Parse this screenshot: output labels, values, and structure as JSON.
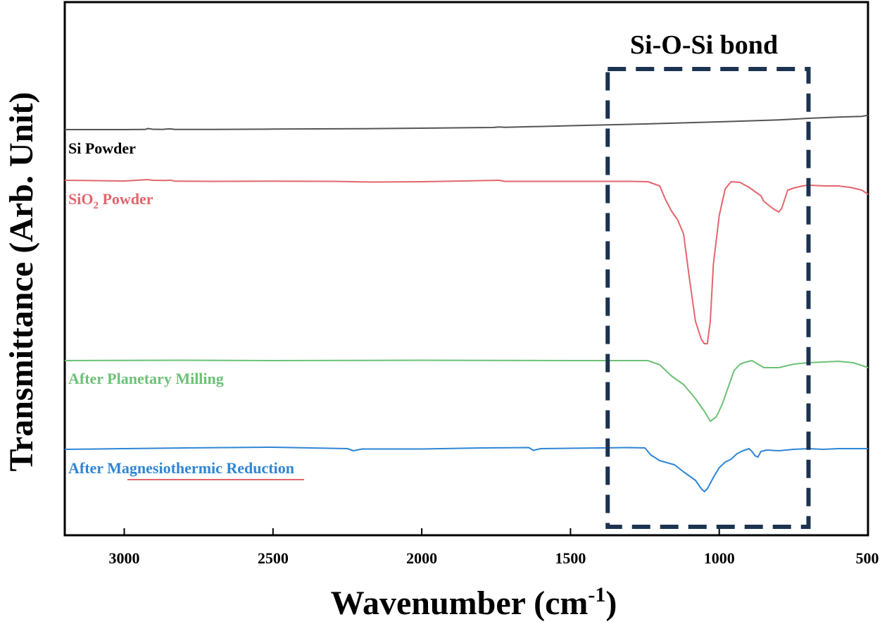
{
  "chart_data": {
    "type": "line",
    "xlabel": "Wavenumber (cm",
    "xlabel_sup": "-1",
    "xlabel_close": ")",
    "ylabel": "Transmittance (Arb. Unit)",
    "xlim": [
      3200,
      500
    ],
    "x_reversed": true,
    "xticks": [
      "3000",
      "2500",
      "2000",
      "1500",
      "1000",
      "500"
    ],
    "y_ticks_shown": false,
    "legend": "inline labels on left, left-aligned above each trace",
    "annotation": {
      "label": "Si-O-Si bond",
      "x_range": [
        1375,
        700
      ],
      "style": "dashed rectangle, dark navy"
    },
    "series": [
      {
        "name": "Si Powder",
        "name_parts": [
          "Si Powder"
        ],
        "color": "#555555",
        "points": [
          [
            3200,
            0.0
          ],
          [
            3000,
            0.0
          ],
          [
            2930,
            0.2
          ],
          [
            2920,
            1.5
          ],
          [
            2905,
            0.5
          ],
          [
            2870,
            0.3
          ],
          [
            2860,
            0.8
          ],
          [
            2845,
            1.0
          ],
          [
            2830,
            0.3
          ],
          [
            2700,
            0.3
          ],
          [
            2500,
            0.7
          ],
          [
            2200,
            1.3
          ],
          [
            2000,
            2.0
          ],
          [
            1760,
            3.0
          ],
          [
            1740,
            3.8
          ],
          [
            1720,
            3.2
          ],
          [
            1500,
            5.5
          ],
          [
            1250,
            8.0
          ],
          [
            1000,
            11.0
          ],
          [
            800,
            13.8
          ],
          [
            700,
            16.0
          ],
          [
            600,
            17.8
          ],
          [
            520,
            18.8
          ],
          [
            505,
            20.0
          ],
          [
            500,
            20.0
          ]
        ]
      },
      {
        "name": "SiO2 Powder",
        "name_parts": [
          "SiO",
          "2",
          " Powder"
        ],
        "color": "#e2666d",
        "points": [
          [
            3200,
            0.0
          ],
          [
            3000,
            -1.0
          ],
          [
            2920,
            1.0
          ],
          [
            2905,
            0.0
          ],
          [
            2860,
            -0.3
          ],
          [
            2845,
            0.3
          ],
          [
            2830,
            -1.2
          ],
          [
            2700,
            -1.5
          ],
          [
            2500,
            -1.2
          ],
          [
            2300,
            -1.5
          ],
          [
            2170,
            -2.5
          ],
          [
            2000,
            -2.0
          ],
          [
            1740,
            0.0
          ],
          [
            1720,
            -1.5
          ],
          [
            1500,
            -1.5
          ],
          [
            1300,
            -1.5
          ],
          [
            1240,
            -2.0
          ],
          [
            1200,
            -8.0
          ],
          [
            1180,
            -28.0
          ],
          [
            1160,
            -44.0
          ],
          [
            1140,
            -56.0
          ],
          [
            1120,
            -76.0
          ],
          [
            1100,
            -140.0
          ],
          [
            1080,
            -200.0
          ],
          [
            1060,
            -226.0
          ],
          [
            1050,
            -232.0
          ],
          [
            1040,
            -232.0
          ],
          [
            1030,
            -200.0
          ],
          [
            1020,
            -120.0
          ],
          [
            1000,
            -50.0
          ],
          [
            980,
            -12.0
          ],
          [
            960,
            -2.0
          ],
          [
            930,
            -3.0
          ],
          [
            900,
            -10.0
          ],
          [
            880,
            -16.0
          ],
          [
            860,
            -22.0
          ],
          [
            850,
            -30.0
          ],
          [
            820,
            -40.0
          ],
          [
            800,
            -45.0
          ],
          [
            790,
            -40.0
          ],
          [
            770,
            -14.0
          ],
          [
            750,
            -11.0
          ],
          [
            720,
            -8.0
          ],
          [
            700,
            -7.0
          ],
          [
            640,
            -8.0
          ],
          [
            600,
            -8.0
          ],
          [
            560,
            -10.0
          ],
          [
            520,
            -14.0
          ],
          [
            500,
            -20.0
          ]
        ]
      },
      {
        "name": "After Planetary Milling",
        "name_parts": [
          "After Planetary Milling"
        ],
        "color": "#6cc177",
        "points": [
          [
            3200,
            0.0
          ],
          [
            2800,
            0.5
          ],
          [
            2500,
            0.0
          ],
          [
            2200,
            0.3
          ],
          [
            2000,
            0.5
          ],
          [
            1500,
            0.0
          ],
          [
            1300,
            0.0
          ],
          [
            1240,
            0.0
          ],
          [
            1200,
            -6.0
          ],
          [
            1160,
            -22.0
          ],
          [
            1120,
            -34.0
          ],
          [
            1080,
            -54.0
          ],
          [
            1050,
            -72.0
          ],
          [
            1030,
            -86.0
          ],
          [
            1010,
            -80.0
          ],
          [
            990,
            -62.0
          ],
          [
            970,
            -38.0
          ],
          [
            950,
            -14.0
          ],
          [
            930,
            -5.0
          ],
          [
            910,
            -2.0
          ],
          [
            890,
            0.0
          ],
          [
            870,
            -5.0
          ],
          [
            850,
            -10.0
          ],
          [
            830,
            -10.0
          ],
          [
            800,
            -10.0
          ],
          [
            780,
            -8.0
          ],
          [
            750,
            -5.0
          ],
          [
            700,
            -3.0
          ],
          [
            600,
            -1.0
          ],
          [
            550,
            -3.0
          ],
          [
            520,
            -7.0
          ],
          [
            500,
            -10.0
          ]
        ]
      },
      {
        "name": "After Magnesiothermic Reduction",
        "name_parts": [
          "After Magnesiothermic Reduction"
        ],
        "color": "#2e86d6",
        "points": [
          [
            3200,
            0.0
          ],
          [
            3000,
            1.0
          ],
          [
            2800,
            2.0
          ],
          [
            2500,
            3.0
          ],
          [
            2250,
            1.0
          ],
          [
            2230,
            -2.0
          ],
          [
            2200,
            0.5
          ],
          [
            2000,
            0.5
          ],
          [
            1800,
            2.0
          ],
          [
            1640,
            2.5
          ],
          [
            1625,
            -1.5
          ],
          [
            1600,
            1.0
          ],
          [
            1400,
            2.0
          ],
          [
            1300,
            2.5
          ],
          [
            1250,
            2.0
          ],
          [
            1230,
            -8.0
          ],
          [
            1200,
            -16.0
          ],
          [
            1150,
            -22.0
          ],
          [
            1120,
            -32.0
          ],
          [
            1080,
            -44.0
          ],
          [
            1060,
            -56.0
          ],
          [
            1050,
            -60.0
          ],
          [
            1040,
            -56.0
          ],
          [
            1020,
            -40.0
          ],
          [
            1000,
            -26.0
          ],
          [
            980,
            -18.0
          ],
          [
            960,
            -14.0
          ],
          [
            940,
            -6.0
          ],
          [
            920,
            -2.0
          ],
          [
            900,
            1.0
          ],
          [
            890,
            -3.0
          ],
          [
            880,
            -9.0
          ],
          [
            870,
            -11.0
          ],
          [
            860,
            -3.0
          ],
          [
            840,
            -1.0
          ],
          [
            800,
            -2.0
          ],
          [
            750,
            0.0
          ],
          [
            700,
            1.0
          ],
          [
            650,
            0.0
          ],
          [
            600,
            1.0
          ],
          [
            500,
            1.0
          ]
        ]
      }
    ]
  }
}
